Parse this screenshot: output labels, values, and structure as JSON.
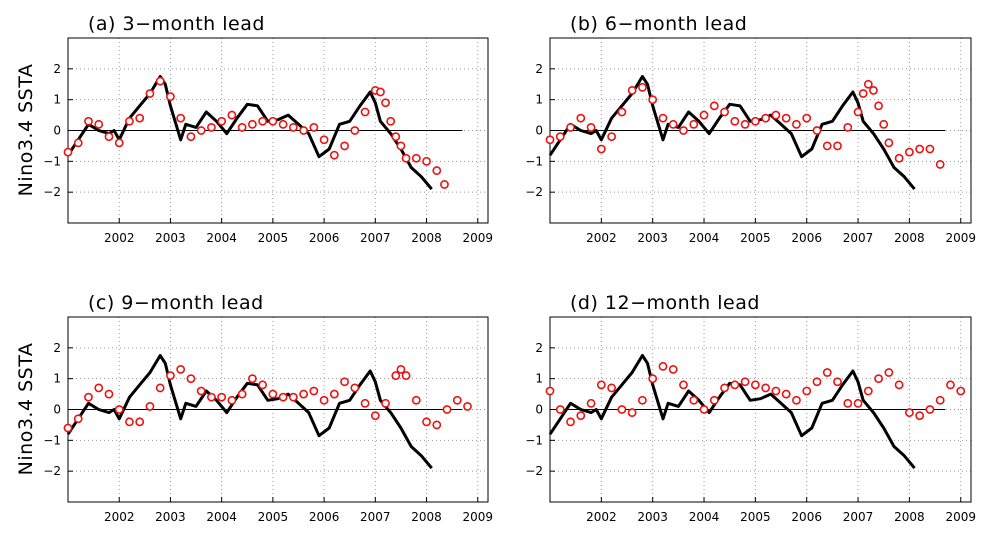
{
  "ylabel": "Nino3.4  SSTA",
  "colors": {
    "observed": "#000000",
    "forecast": "#ee1111",
    "zero_line": "#000000"
  },
  "chart_data": [
    {
      "type": "line",
      "title": "(a) 3−month lead",
      "xlim": [
        2001.0,
        2009.2
      ],
      "ylim": [
        -3,
        3
      ],
      "xticks": [
        2002,
        2003,
        2004,
        2005,
        2006,
        2007,
        2008,
        2009
      ],
      "yticks": [
        -2,
        -1,
        0,
        1,
        2
      ],
      "grid": true,
      "series": [
        {
          "style": "line",
          "x": [
            2001.0,
            2001.2,
            2001.4,
            2001.6,
            2001.8,
            2001.9,
            2002.0,
            2002.2,
            2002.4,
            2002.6,
            2002.8,
            2002.9,
            2003.0,
            2003.2,
            2003.3,
            2003.5,
            2003.7,
            2003.9,
            2004.1,
            2004.3,
            2004.5,
            2004.7,
            2004.9,
            2005.1,
            2005.3,
            2005.5,
            2005.7,
            2005.9,
            2006.1,
            2006.3,
            2006.5,
            2006.7,
            2006.9,
            2007.0,
            2007.1,
            2007.3,
            2007.5,
            2007.7,
            2007.9,
            2008.1
          ],
          "y": [
            -0.8,
            -0.3,
            0.2,
            0.0,
            -0.1,
            0.0,
            -0.3,
            0.4,
            0.8,
            1.2,
            1.75,
            1.5,
            0.8,
            -0.3,
            0.2,
            0.1,
            0.6,
            0.3,
            -0.1,
            0.4,
            0.85,
            0.8,
            0.3,
            0.35,
            0.5,
            0.2,
            -0.1,
            -0.85,
            -0.6,
            0.2,
            0.3,
            0.8,
            1.25,
            0.9,
            0.3,
            -0.1,
            -0.6,
            -1.2,
            -1.5,
            -1.9
          ]
        },
        {
          "style": "circles",
          "x": [
            2001.0,
            2001.2,
            2001.4,
            2001.6,
            2001.8,
            2002.0,
            2002.2,
            2002.4,
            2002.6,
            2002.8,
            2003.0,
            2003.2,
            2003.4,
            2003.6,
            2003.8,
            2004.0,
            2004.2,
            2004.4,
            2004.6,
            2004.8,
            2005.0,
            2005.2,
            2005.4,
            2005.6,
            2005.8,
            2006.0,
            2006.2,
            2006.4,
            2006.6,
            2006.8,
            2007.0,
            2007.1,
            2007.2,
            2007.3,
            2007.4,
            2007.5,
            2007.6,
            2007.8,
            2008.0,
            2008.2,
            2008.35
          ],
          "y": [
            -0.7,
            -0.4,
            0.3,
            0.2,
            -0.2,
            -0.4,
            0.3,
            0.4,
            1.2,
            1.6,
            1.1,
            0.4,
            -0.2,
            0.0,
            0.1,
            0.3,
            0.5,
            0.1,
            0.2,
            0.3,
            0.3,
            0.2,
            0.1,
            0.0,
            0.1,
            -0.3,
            -0.8,
            -0.5,
            0.0,
            0.6,
            1.3,
            1.25,
            0.9,
            0.3,
            -0.2,
            -0.5,
            -0.9,
            -0.9,
            -1.0,
            -1.3,
            -1.75
          ]
        }
      ]
    },
    {
      "type": "line",
      "title": "(b) 6−month lead",
      "xlim": [
        2001.0,
        2009.2
      ],
      "ylim": [
        -3,
        3
      ],
      "xticks": [
        2002,
        2003,
        2004,
        2005,
        2006,
        2007,
        2008,
        2009
      ],
      "yticks": [
        -2,
        -1,
        0,
        1,
        2
      ],
      "grid": true,
      "series": [
        {
          "style": "line",
          "x": [
            2001.0,
            2001.2,
            2001.4,
            2001.6,
            2001.8,
            2001.9,
            2002.0,
            2002.2,
            2002.4,
            2002.6,
            2002.8,
            2002.9,
            2003.0,
            2003.2,
            2003.3,
            2003.5,
            2003.7,
            2003.9,
            2004.1,
            2004.3,
            2004.5,
            2004.7,
            2004.9,
            2005.1,
            2005.3,
            2005.5,
            2005.7,
            2005.9,
            2006.1,
            2006.3,
            2006.5,
            2006.7,
            2006.9,
            2007.0,
            2007.1,
            2007.3,
            2007.5,
            2007.7,
            2007.9,
            2008.1
          ],
          "y": [
            -0.8,
            -0.3,
            0.2,
            0.0,
            -0.1,
            0.0,
            -0.3,
            0.4,
            0.8,
            1.2,
            1.75,
            1.5,
            0.8,
            -0.3,
            0.2,
            0.1,
            0.6,
            0.3,
            -0.1,
            0.4,
            0.85,
            0.8,
            0.3,
            0.35,
            0.5,
            0.2,
            -0.1,
            -0.85,
            -0.6,
            0.2,
            0.3,
            0.8,
            1.25,
            0.9,
            0.3,
            -0.1,
            -0.6,
            -1.2,
            -1.5,
            -1.9
          ]
        },
        {
          "style": "circles",
          "x": [
            2001.0,
            2001.2,
            2001.4,
            2001.6,
            2001.8,
            2002.0,
            2002.2,
            2002.4,
            2002.6,
            2002.8,
            2003.0,
            2003.2,
            2003.4,
            2003.6,
            2003.8,
            2004.0,
            2004.2,
            2004.4,
            2004.6,
            2004.8,
            2005.0,
            2005.2,
            2005.4,
            2005.6,
            2005.8,
            2006.0,
            2006.2,
            2006.4,
            2006.6,
            2006.8,
            2007.0,
            2007.1,
            2007.2,
            2007.3,
            2007.4,
            2007.5,
            2007.6,
            2007.8,
            2008.0,
            2008.2,
            2008.4,
            2008.6
          ],
          "y": [
            -0.3,
            -0.2,
            0.1,
            0.4,
            0.1,
            -0.6,
            -0.2,
            0.6,
            1.3,
            1.4,
            1.0,
            0.4,
            0.2,
            0.0,
            0.2,
            0.5,
            0.8,
            0.6,
            0.3,
            0.2,
            0.3,
            0.4,
            0.5,
            0.4,
            0.2,
            0.4,
            0.0,
            -0.5,
            -0.5,
            0.1,
            0.6,
            1.2,
            1.5,
            1.3,
            0.8,
            0.2,
            -0.4,
            -0.9,
            -0.7,
            -0.6,
            -0.6,
            -1.1
          ]
        }
      ]
    },
    {
      "type": "line",
      "title": "(c) 9−month lead",
      "xlim": [
        2001.0,
        2009.2
      ],
      "ylim": [
        -3,
        3
      ],
      "xticks": [
        2002,
        2003,
        2004,
        2005,
        2006,
        2007,
        2008,
        2009
      ],
      "yticks": [
        -2,
        -1,
        0,
        1,
        2
      ],
      "grid": true,
      "series": [
        {
          "style": "line",
          "x": [
            2001.0,
            2001.2,
            2001.4,
            2001.6,
            2001.8,
            2001.9,
            2002.0,
            2002.2,
            2002.4,
            2002.6,
            2002.8,
            2002.9,
            2003.0,
            2003.2,
            2003.3,
            2003.5,
            2003.7,
            2003.9,
            2004.1,
            2004.3,
            2004.5,
            2004.7,
            2004.9,
            2005.1,
            2005.3,
            2005.5,
            2005.7,
            2005.9,
            2006.1,
            2006.3,
            2006.5,
            2006.7,
            2006.9,
            2007.0,
            2007.1,
            2007.3,
            2007.5,
            2007.7,
            2007.9,
            2008.1
          ],
          "y": [
            -0.8,
            -0.3,
            0.2,
            0.0,
            -0.1,
            0.0,
            -0.3,
            0.4,
            0.8,
            1.2,
            1.75,
            1.5,
            0.8,
            -0.3,
            0.2,
            0.1,
            0.6,
            0.3,
            -0.1,
            0.4,
            0.85,
            0.8,
            0.3,
            0.35,
            0.5,
            0.2,
            -0.1,
            -0.85,
            -0.6,
            0.2,
            0.3,
            0.8,
            1.25,
            0.9,
            0.3,
            -0.1,
            -0.6,
            -1.2,
            -1.5,
            -1.9
          ]
        },
        {
          "style": "circles",
          "x": [
            2001.0,
            2001.2,
            2001.4,
            2001.6,
            2001.8,
            2002.0,
            2002.2,
            2002.4,
            2002.6,
            2002.8,
            2003.0,
            2003.2,
            2003.4,
            2003.6,
            2003.8,
            2004.0,
            2004.2,
            2004.4,
            2004.6,
            2004.8,
            2005.0,
            2005.2,
            2005.4,
            2005.6,
            2005.8,
            2006.0,
            2006.2,
            2006.4,
            2006.6,
            2006.8,
            2007.0,
            2007.2,
            2007.4,
            2007.5,
            2007.6,
            2007.8,
            2008.0,
            2008.2,
            2008.4,
            2008.6,
            2008.8
          ],
          "y": [
            -0.6,
            -0.3,
            0.4,
            0.7,
            0.5,
            0.0,
            -0.4,
            -0.4,
            0.1,
            0.7,
            1.1,
            1.3,
            1.0,
            0.6,
            0.4,
            0.4,
            0.3,
            0.5,
            1.0,
            0.8,
            0.5,
            0.4,
            0.4,
            0.5,
            0.6,
            0.3,
            0.5,
            0.9,
            0.7,
            0.2,
            -0.2,
            0.2,
            1.1,
            1.3,
            1.1,
            0.3,
            -0.4,
            -0.5,
            0.0,
            0.3,
            0.1
          ]
        }
      ]
    },
    {
      "type": "line",
      "title": "(d) 12−month lead",
      "xlim": [
        2001.0,
        2009.2
      ],
      "ylim": [
        -3,
        3
      ],
      "xticks": [
        2002,
        2003,
        2004,
        2005,
        2006,
        2007,
        2008,
        2009
      ],
      "yticks": [
        -2,
        -1,
        0,
        1,
        2
      ],
      "grid": true,
      "series": [
        {
          "style": "line",
          "x": [
            2001.0,
            2001.2,
            2001.4,
            2001.6,
            2001.8,
            2001.9,
            2002.0,
            2002.2,
            2002.4,
            2002.6,
            2002.8,
            2002.9,
            2003.0,
            2003.2,
            2003.3,
            2003.5,
            2003.7,
            2003.9,
            2004.1,
            2004.3,
            2004.5,
            2004.7,
            2004.9,
            2005.1,
            2005.3,
            2005.5,
            2005.7,
            2005.9,
            2006.1,
            2006.3,
            2006.5,
            2006.7,
            2006.9,
            2007.0,
            2007.1,
            2007.3,
            2007.5,
            2007.7,
            2007.9,
            2008.1
          ],
          "y": [
            -0.8,
            -0.3,
            0.2,
            0.0,
            -0.1,
            0.0,
            -0.3,
            0.4,
            0.8,
            1.2,
            1.75,
            1.5,
            0.8,
            -0.3,
            0.2,
            0.1,
            0.6,
            0.3,
            -0.1,
            0.4,
            0.85,
            0.8,
            0.3,
            0.35,
            0.5,
            0.2,
            -0.1,
            -0.85,
            -0.6,
            0.2,
            0.3,
            0.8,
            1.25,
            0.9,
            0.3,
            -0.1,
            -0.6,
            -1.2,
            -1.5,
            -1.9
          ]
        },
        {
          "style": "circles",
          "x": [
            2001.0,
            2001.2,
            2001.4,
            2001.6,
            2001.8,
            2002.0,
            2002.2,
            2002.4,
            2002.6,
            2002.8,
            2003.0,
            2003.2,
            2003.4,
            2003.6,
            2003.8,
            2004.0,
            2004.2,
            2004.4,
            2004.6,
            2004.8,
            2005.0,
            2005.2,
            2005.4,
            2005.6,
            2005.8,
            2006.0,
            2006.2,
            2006.4,
            2006.6,
            2006.8,
            2007.0,
            2007.2,
            2007.4,
            2007.6,
            2007.8,
            2008.0,
            2008.2,
            2008.4,
            2008.6,
            2008.8,
            2009.0
          ],
          "y": [
            0.6,
            0.0,
            -0.4,
            -0.2,
            0.2,
            0.8,
            0.7,
            0.0,
            -0.1,
            0.3,
            1.0,
            1.4,
            1.3,
            0.8,
            0.3,
            0.0,
            0.3,
            0.7,
            0.8,
            0.9,
            0.8,
            0.7,
            0.6,
            0.5,
            0.3,
            0.6,
            0.9,
            1.2,
            0.9,
            0.2,
            0.2,
            0.6,
            1.0,
            1.2,
            0.8,
            -0.1,
            -0.2,
            0.0,
            0.3,
            0.8,
            0.6
          ]
        }
      ]
    }
  ]
}
